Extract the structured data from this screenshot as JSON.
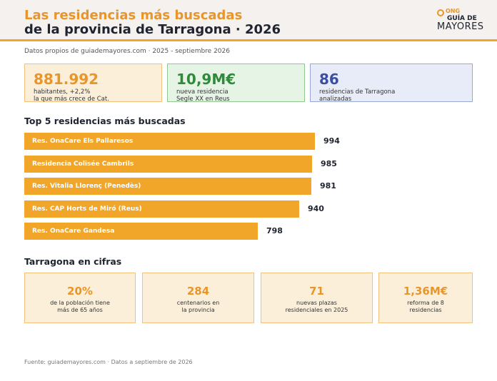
{
  "header": {
    "title_line1": "Las residencias más buscadas",
    "title_line2": "de la provincia de Tarragona · 2026",
    "logo_ong": "ONG",
    "logo_guia": "GUÍA DE",
    "logo_mayores": "MAYORES"
  },
  "subtitle": "Datos propios de guiademayores.com · 2025 - septiembre 2026",
  "kpis": [
    {
      "value": "881.992",
      "desc_line1": "habitantes, +2,2%",
      "desc_line2": "la que más crece de Cat."
    },
    {
      "value": "10,9M€",
      "desc_line1": "nueva residencia",
      "desc_line2": "Segle XX en Reus"
    },
    {
      "value": "86",
      "desc_line1": "residencias de Tarragona",
      "desc_line2": "analizadas"
    }
  ],
  "chart_data": {
    "type": "bar",
    "orientation": "horizontal",
    "title": "Top 5 residencias más buscadas",
    "categories": [
      "Res. OnaCare Els Pallaresos",
      "Residencia Colisée Cambrils",
      "Res. Vitalia Llorenç (Penedès)",
      "Res. CAP Horts de Miró (Reus)",
      "Res. OnaCare Gandesa"
    ],
    "values": [
      994,
      985,
      981,
      940,
      798
    ],
    "value_labels": [
      "994",
      "985",
      "981",
      "940",
      "798"
    ],
    "bar_color": "#f2a629"
  },
  "cifras": {
    "title": "Tarragona en cifras",
    "items": [
      {
        "value": "20%",
        "desc_line1": "de la población tiene",
        "desc_line2": "más de 65 años"
      },
      {
        "value": "284",
        "desc_line1": "centenarios en",
        "desc_line2": "la provincia"
      },
      {
        "value": "71",
        "desc_line1": "nuevas plazas",
        "desc_line2": "residenciales en 2025"
      },
      {
        "value": "1,36M€",
        "desc_line1": "reforma de 8",
        "desc_line2": "residencias"
      }
    ]
  },
  "footer": "Fuente: guiademayores.com · Datos a septiembre de 2026",
  "colors": {
    "accent": "#e8952a",
    "bar": "#f2a629",
    "dark": "#1f2430"
  }
}
